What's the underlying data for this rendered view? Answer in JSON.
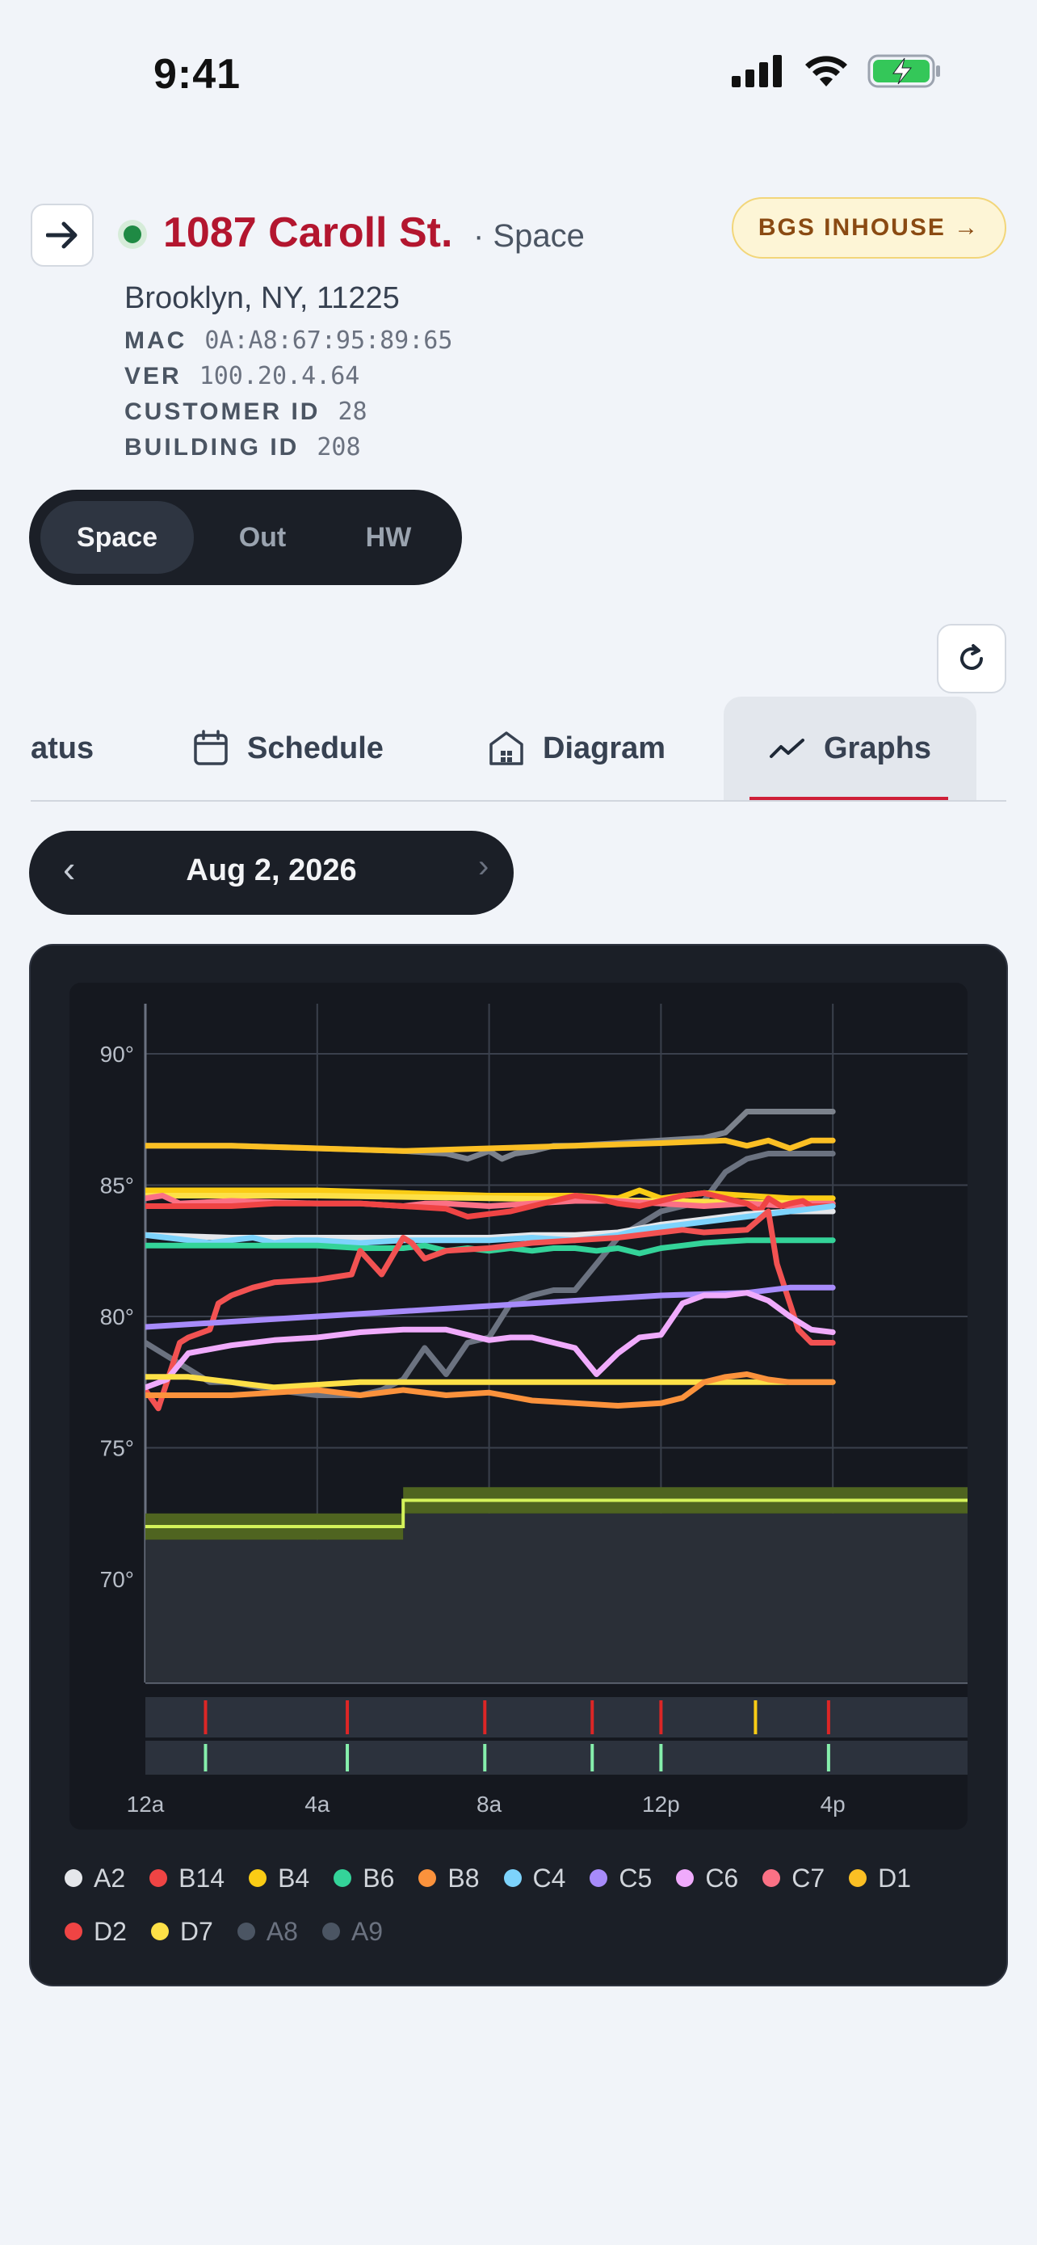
{
  "status_bar": {
    "time": "9:41"
  },
  "header": {
    "title": "1087 Caroll St.",
    "subtitle": "· Space",
    "address": "Brooklyn, NY, 11225",
    "bgs_button": "BGS INHOUSE →",
    "meta": [
      {
        "key": "MAC",
        "value": "0A:A8:67:95:89:65"
      },
      {
        "key": "VER",
        "value": "100.20.4.64"
      },
      {
        "key": "CUSTOMER ID",
        "value": "28"
      },
      {
        "key": "BUILDING ID",
        "value": "208"
      }
    ]
  },
  "segments": {
    "items": [
      "Space",
      "Out",
      "HW"
    ],
    "active": "Space"
  },
  "tabs": {
    "items": [
      {
        "label": "atus",
        "icon": ""
      },
      {
        "label": "Schedule",
        "icon": "calendar-icon"
      },
      {
        "label": "Diagram",
        "icon": "building-icon"
      },
      {
        "label": "Graphs",
        "icon": "chart-line-icon"
      }
    ],
    "active": "Graphs"
  },
  "date_picker": {
    "label": "Aug 2, 2026",
    "prev": "‹",
    "next": "›"
  },
  "chart_data": {
    "type": "line",
    "x_ticks": [
      "12a",
      "4a",
      "8a",
      "12p",
      "4p"
    ],
    "xlim_hours": [
      0,
      19
    ],
    "y_ticks": [
      "90°",
      "85°",
      "80°",
      "75°",
      "70°"
    ],
    "ylim": [
      66,
      92
    ],
    "grid": true,
    "setpoint_band": {
      "color": "#d4f25a",
      "points": [
        {
          "x": 0,
          "low": 71.5,
          "high": 72.5,
          "line": 72
        },
        {
          "x": 6,
          "low": 71.5,
          "high": 72.5,
          "line": 72
        },
        {
          "x": 6,
          "low": 72.5,
          "high": 73.5,
          "line": 73
        },
        {
          "x": 19,
          "low": 72.5,
          "high": 73.5,
          "line": 73
        }
      ]
    },
    "series": [
      {
        "name": "A9",
        "color": "#6b7280",
        "x": [
          0,
          0.5,
          1,
          1.5,
          2,
          3,
          4,
          5,
          5.5,
          6,
          6.5,
          7,
          7.5,
          8,
          8.5,
          9,
          9.5,
          10,
          10.2,
          10.5,
          11,
          11.5,
          12,
          12.5,
          13,
          13.5,
          14,
          14.5,
          15,
          15.5,
          16
        ],
        "y": [
          79,
          78.5,
          78,
          77.5,
          77.5,
          77.2,
          77,
          77,
          77.2,
          77.6,
          78.8,
          77.8,
          79,
          79.2,
          80.5,
          80.8,
          81,
          81,
          81.4,
          82,
          83,
          83.5,
          84,
          84.2,
          84.4,
          85.5,
          86,
          86.2,
          86.2,
          86.2,
          86.2
        ]
      },
      {
        "name": "A8",
        "color": "#7c828c",
        "x": [
          0,
          2,
          4,
          6,
          7,
          7.5,
          8,
          8.3,
          8.6,
          9,
          9.5,
          10,
          11,
          12,
          13,
          13.5,
          14,
          15,
          16
        ],
        "y": [
          86.5,
          86.5,
          86.4,
          86.3,
          86.2,
          86,
          86.3,
          86,
          86.2,
          86.3,
          86.5,
          86.5,
          86.6,
          86.7,
          86.8,
          87,
          87.8,
          87.8,
          87.8
        ]
      },
      {
        "name": "D1",
        "color": "#fbbf24",
        "x": [
          0,
          2,
          4,
          6,
          8,
          10,
          12,
          13.5,
          14,
          14.5,
          15,
          15.5,
          16
        ],
        "y": [
          86.5,
          86.5,
          86.4,
          86.3,
          86.4,
          86.5,
          86.6,
          86.7,
          86.5,
          86.7,
          86.4,
          86.7,
          86.7
        ]
      },
      {
        "name": "B4",
        "color": "#facc15",
        "x": [
          0,
          2,
          4,
          6,
          8,
          10,
          11,
          11.5,
          12,
          12.5,
          13,
          14,
          15,
          16
        ],
        "y": [
          84.8,
          84.8,
          84.8,
          84.7,
          84.6,
          84.6,
          84.5,
          84.8,
          84.5,
          84.6,
          84.7,
          84.6,
          84.5,
          84.5
        ]
      },
      {
        "name": "D7",
        "color": "#fde047",
        "x": [
          0,
          4,
          8,
          12,
          16
        ],
        "y": [
          84.6,
          84.6,
          84.5,
          84.4,
          84.3
        ]
      },
      {
        "name": "C7",
        "color": "#fb7185",
        "x": [
          0,
          0.4,
          0.8,
          2,
          4,
          5,
          6,
          6.5,
          7,
          8,
          9,
          10,
          11,
          12,
          13,
          14,
          15,
          15.5,
          16
        ],
        "y": [
          84.5,
          84.6,
          84.3,
          84.4,
          84.3,
          84.3,
          84.2,
          84.3,
          84.3,
          84.2,
          84.3,
          84.4,
          84.4,
          84.3,
          84.2,
          84.3,
          84.2,
          84.3,
          84.3
        ]
      },
      {
        "name": "B14",
        "color": "#ef4444",
        "x": [
          0,
          0.5,
          2,
          3,
          4,
          5,
          6,
          7,
          7.5,
          8,
          8.5,
          9,
          10,
          10.5,
          11,
          11.5,
          12,
          12.5,
          13,
          13.5,
          14,
          14.3,
          14.5,
          14.8,
          15,
          15.3,
          15.5,
          16
        ],
        "y": [
          84.2,
          84.2,
          84.2,
          84.3,
          84.3,
          84.3,
          84.2,
          84.1,
          83.8,
          83.9,
          84,
          84.2,
          84.6,
          84.5,
          84.3,
          84.2,
          84.4,
          84.6,
          84.7,
          84.5,
          84.3,
          84,
          84.5,
          84.2,
          84.3,
          84.4,
          84.2,
          84.2
        ]
      },
      {
        "name": "A2",
        "color": "#e5e7eb",
        "x": [
          0,
          2,
          4,
          6,
          8,
          9,
          10,
          11,
          12,
          13,
          14,
          15,
          16
        ],
        "y": [
          83.1,
          83,
          83,
          83,
          83,
          83.1,
          83.1,
          83.2,
          83.5,
          83.7,
          83.9,
          84,
          84
        ]
      },
      {
        "name": "C4",
        "color": "#7dd3fc",
        "x": [
          0,
          0.5,
          1,
          1.5,
          2,
          2.5,
          3,
          3.5,
          4,
          5,
          6,
          7,
          8,
          9,
          10,
          10.5,
          11,
          11.5,
          12,
          13,
          14,
          15,
          16
        ],
        "y": [
          83.1,
          83,
          82.9,
          82.8,
          82.9,
          83,
          82.8,
          82.9,
          82.9,
          82.8,
          82.9,
          82.9,
          82.9,
          83,
          82.9,
          83,
          83.1,
          83.3,
          83.4,
          83.6,
          83.8,
          84,
          84.2
        ]
      },
      {
        "name": "B6",
        "color": "#34d399",
        "x": [
          0,
          2,
          4,
          5,
          6,
          6.5,
          7,
          7.5,
          8,
          8.5,
          9,
          9.5,
          10,
          10.5,
          11,
          11.5,
          12,
          12.5,
          13,
          14,
          15,
          16
        ],
        "y": [
          82.7,
          82.7,
          82.7,
          82.6,
          82.6,
          82.7,
          82.5,
          82.6,
          82.5,
          82.6,
          82.5,
          82.6,
          82.6,
          82.5,
          82.6,
          82.4,
          82.6,
          82.7,
          82.8,
          82.9,
          82.9,
          82.9
        ]
      },
      {
        "name": "D2",
        "color": "#f25252",
        "x": [
          0,
          0.3,
          0.5,
          0.8,
          1,
          1.5,
          1.7,
          2,
          2.5,
          3,
          4,
          4.8,
          5,
          5.5,
          6,
          6.2,
          6.5,
          7,
          8,
          9,
          10,
          11,
          12,
          12.5,
          13,
          14,
          14.5,
          14.7,
          15,
          15.2,
          15.5,
          16
        ],
        "y": [
          77.2,
          76.5,
          77.5,
          79,
          79.2,
          79.5,
          80.5,
          80.8,
          81.1,
          81.3,
          81.4,
          81.6,
          82.5,
          81.6,
          83,
          82.8,
          82.2,
          82.5,
          82.6,
          82.8,
          82.9,
          83,
          83.2,
          83.3,
          83.2,
          83.3,
          84,
          82,
          80.5,
          79.5,
          79,
          79
        ]
      },
      {
        "name": "C5",
        "color": "#a78bfa",
        "x": [
          0,
          2,
          4,
          6,
          8,
          10,
          12,
          14,
          15,
          16
        ],
        "y": [
          79.6,
          79.8,
          80,
          80.2,
          80.4,
          80.6,
          80.8,
          80.9,
          81.1,
          81.1
        ]
      },
      {
        "name": "C6",
        "color": "#f0abfc",
        "x": [
          0,
          0.5,
          1,
          2,
          3,
          4,
          5,
          6,
          7,
          7.5,
          8,
          8.5,
          9,
          10,
          10.5,
          11,
          11.5,
          12,
          12.5,
          13,
          13.5,
          14,
          14.5,
          15,
          15.5,
          16
        ],
        "y": [
          77.3,
          77.6,
          78.6,
          78.9,
          79.1,
          79.2,
          79.4,
          79.5,
          79.5,
          79.3,
          79.1,
          79.2,
          79.2,
          78.8,
          77.8,
          78.6,
          79.2,
          79.3,
          80.5,
          80.8,
          80.8,
          80.9,
          80.6,
          80,
          79.5,
          79.4
        ]
      },
      {
        "name": "D7-low",
        "color": "#fde047",
        "x": [
          0,
          1,
          2,
          3,
          4,
          5,
          6,
          8,
          10,
          12,
          14,
          16
        ],
        "y": [
          77.7,
          77.7,
          77.5,
          77.3,
          77.4,
          77.5,
          77.5,
          77.5,
          77.5,
          77.5,
          77.5,
          77.5
        ]
      },
      {
        "name": "B8",
        "color": "#fb923c",
        "x": [
          0,
          2,
          4,
          5,
          6,
          7,
          8,
          9,
          10,
          11,
          12,
          12.5,
          13,
          13.5,
          14,
          14.5,
          15,
          16
        ],
        "y": [
          77,
          77,
          77.2,
          77,
          77.2,
          77,
          77.1,
          76.8,
          76.7,
          76.6,
          76.7,
          76.9,
          77.5,
          77.7,
          77.8,
          77.6,
          77.5,
          77.5
        ]
      }
    ],
    "bars": {
      "row1": [
        {
          "x": 1.4,
          "color": "#dc2626"
        },
        {
          "x": 4.7,
          "color": "#dc2626"
        },
        {
          "x": 7.9,
          "color": "#dc2626"
        },
        {
          "x": 10.4,
          "color": "#dc2626"
        },
        {
          "x": 12,
          "color": "#dc2626"
        },
        {
          "x": 14.2,
          "color": "#facc15"
        },
        {
          "x": 15.9,
          "color": "#dc2626"
        }
      ],
      "row2": [
        {
          "x": 1.4,
          "color": "#86efac"
        },
        {
          "x": 4.7,
          "color": "#86efac"
        },
        {
          "x": 7.9,
          "color": "#86efac"
        },
        {
          "x": 10.4,
          "color": "#86efac"
        },
        {
          "x": 12,
          "color": "#86efac"
        },
        {
          "x": 15.9,
          "color": "#86efac"
        }
      ]
    }
  },
  "legend": [
    {
      "name": "A2",
      "color": "#e5e7eb",
      "muted": false
    },
    {
      "name": "B14",
      "color": "#ef4444",
      "muted": false
    },
    {
      "name": "B4",
      "color": "#facc15",
      "muted": false
    },
    {
      "name": "B6",
      "color": "#34d399",
      "muted": false
    },
    {
      "name": "B8",
      "color": "#fb923c",
      "muted": false
    },
    {
      "name": "C4",
      "color": "#7dd3fc",
      "muted": false
    },
    {
      "name": "C5",
      "color": "#a78bfa",
      "muted": false
    },
    {
      "name": "C6",
      "color": "#f0abfc",
      "muted": false
    },
    {
      "name": "C7",
      "color": "#fb7185",
      "muted": false
    },
    {
      "name": "D1",
      "color": "#fbbf24",
      "muted": false
    },
    {
      "name": "D2",
      "color": "#ef4444",
      "muted": false
    },
    {
      "name": "D7",
      "color": "#fde047",
      "muted": false
    },
    {
      "name": "A8",
      "color": "#4b5563",
      "muted": true
    },
    {
      "name": "A9",
      "color": "#4b5563",
      "muted": true
    }
  ]
}
